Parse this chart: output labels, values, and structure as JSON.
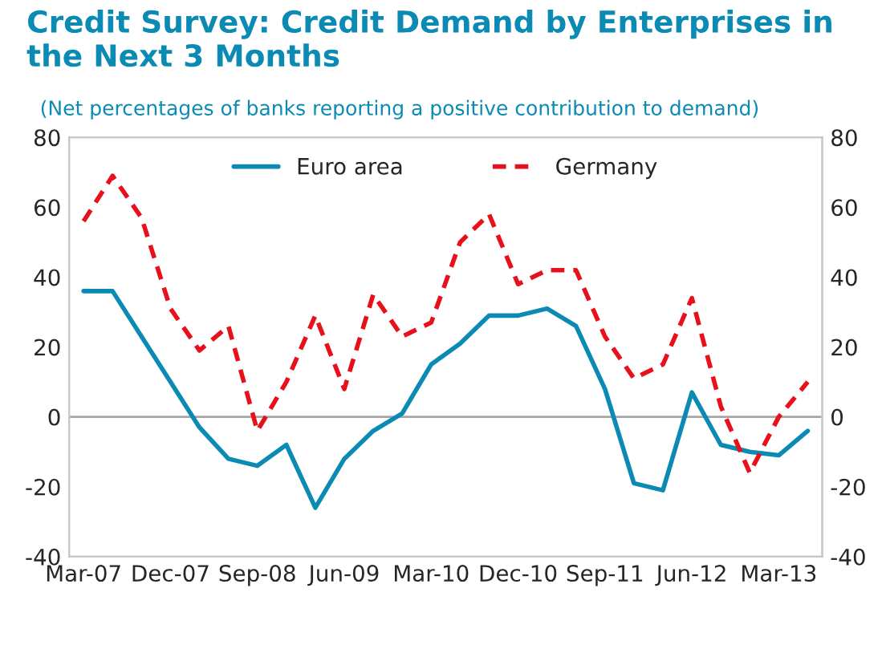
{
  "chart_data": {
    "type": "line",
    "title": "Credit Survey: Credit Demand by Enterprises in\nthe Next 3 Months",
    "subtitle": "(Net percentages of banks reporting a positive contribution to demand)",
    "categories": [
      "Mar-07",
      null,
      null,
      "Dec-07",
      null,
      null,
      "Sep-08",
      null,
      null,
      "Jun-09",
      null,
      null,
      "Mar-10",
      null,
      null,
      "Dec-10",
      null,
      null,
      "Sep-11",
      null,
      null,
      "Jun-12",
      null,
      null,
      "Mar-13",
      null
    ],
    "series": [
      {
        "name": "Euro area",
        "color": "#0b8ab3",
        "line_style": "solid",
        "values": [
          36,
          36,
          23,
          10,
          -3,
          -12,
          -14,
          -8,
          -26,
          -12,
          -4,
          1,
          15,
          21,
          29,
          29,
          31,
          26,
          8,
          -19,
          -21,
          7,
          -8,
          -10,
          -11,
          -4
        ]
      },
      {
        "name": "Germany",
        "color": "#e8101b",
        "line_style": "dashed",
        "values": [
          56,
          69,
          57,
          31,
          19,
          26,
          -4,
          10,
          29,
          8,
          35,
          23,
          27,
          50,
          58,
          38,
          42,
          42,
          23,
          11,
          15,
          34,
          3,
          -16,
          0,
          10
        ]
      }
    ],
    "ylim": [
      -40,
      80
    ],
    "yticks": [
      -40,
      -20,
      0,
      20,
      40,
      60,
      80
    ],
    "y2lim": [
      -40,
      80
    ],
    "y2ticks": [
      -40,
      -20,
      0,
      20,
      40,
      60,
      80
    ],
    "ref_lines": [
      {
        "axis": "y",
        "value": 0,
        "color": "#a6a6a6"
      }
    ],
    "legend": "top",
    "grid": false,
    "marker": "none"
  }
}
